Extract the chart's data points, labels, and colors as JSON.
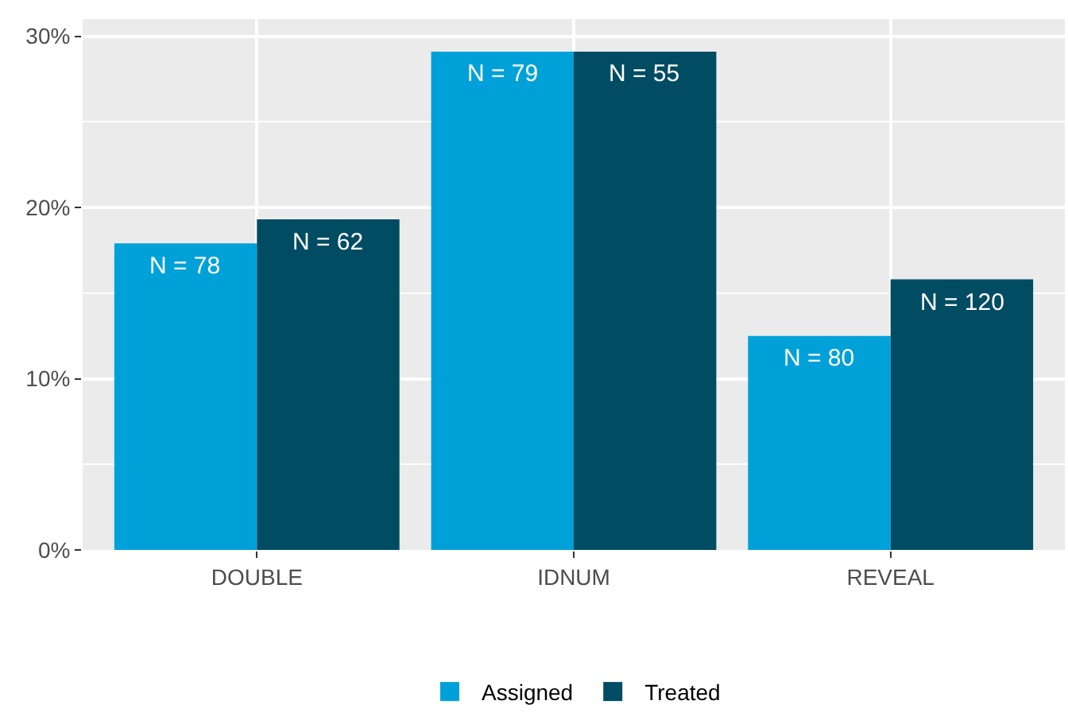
{
  "chart_data": {
    "type": "bar",
    "categories": [
      "DOUBLE",
      "IDNUM",
      "REVEAL"
    ],
    "series": [
      {
        "name": "Assigned",
        "color": "#00a1d9",
        "values": [
          17.9,
          29.1,
          12.5
        ]
      },
      {
        "name": "Treated",
        "color": "#004c63",
        "values": [
          19.3,
          29.1,
          15.8
        ]
      }
    ],
    "annotations": [
      {
        "text": "N = 78",
        "x": "DOUBLE",
        "y": 17.9
      },
      {
        "text": "N = 62",
        "x": "DOUBLE",
        "y": 19.3
      },
      {
        "text": "N = 79",
        "x": "IDNUM",
        "y": 29.1
      },
      {
        "text": "N = 55",
        "x": "IDNUM",
        "y": 29.1
      },
      {
        "text": "N = 80",
        "x": "REVEAL",
        "y": 12.5
      },
      {
        "text": "N = 120",
        "x": "REVEAL",
        "y": 15.8
      }
    ],
    "ylim": [
      0,
      31
    ],
    "yticks": [
      {
        "value": 0,
        "label": "0%"
      },
      {
        "value": 5,
        "label": null
      },
      {
        "value": 10,
        "label": "10%"
      },
      {
        "value": 15,
        "label": null
      },
      {
        "value": 20,
        "label": "20%"
      },
      {
        "value": 25,
        "label": null
      },
      {
        "value": 30,
        "label": "30%"
      }
    ],
    "grid": true,
    "legend": "bottom"
  }
}
